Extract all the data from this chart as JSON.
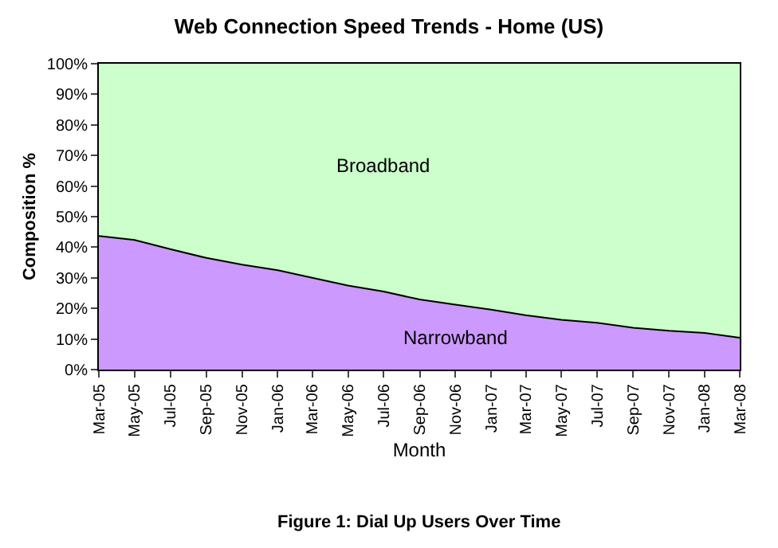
{
  "chart_data": {
    "type": "area",
    "stacked": true,
    "title": "Web Connection Speed Trends - Home (US)",
    "xlabel": "Month",
    "ylabel": "Composition %",
    "annotations": [
      "Figure 1: Dial Up Users Over Time"
    ],
    "x": [
      "2005-03",
      "2005-05",
      "2005-07",
      "2005-09",
      "2005-11",
      "2006-01",
      "2006-03",
      "2006-05",
      "2006-07",
      "2006-09",
      "2006-11",
      "2007-01",
      "2007-03",
      "2007-05",
      "2007-07",
      "2007-09",
      "2007-11",
      "2008-01",
      "2008-03"
    ],
    "series": [
      {
        "name": "Narrowband",
        "color": "#cc99ff",
        "values": [
          43.7,
          42.4,
          39.4,
          36.5,
          34.3,
          32.5,
          30.0,
          27.5,
          25.5,
          22.9,
          21.2,
          19.6,
          17.8,
          16.3,
          15.3,
          13.7,
          12.7,
          12.0,
          10.4
        ]
      },
      {
        "name": "Broadband",
        "color": "#ccffcc",
        "values": [
          56.3,
          57.6,
          60.6,
          63.5,
          65.7,
          67.5,
          70.0,
          72.5,
          74.5,
          77.1,
          78.8,
          80.4,
          82.2,
          83.7,
          84.7,
          86.3,
          87.3,
          88.0,
          89.6
        ]
      }
    ],
    "xlim": [
      "2005-03",
      "2008-03"
    ],
    "xticks": [
      {
        "value": "2005-03",
        "label": "Mar-05"
      },
      {
        "value": "2005-05",
        "label": "May-05"
      },
      {
        "value": "2005-07",
        "label": "Jul-05"
      },
      {
        "value": "2005-09",
        "label": "Sep-05"
      },
      {
        "value": "2005-11",
        "label": "Nov-05"
      },
      {
        "value": "2006-01",
        "label": "Jan-06"
      },
      {
        "value": "2006-03",
        "label": "Mar-06"
      },
      {
        "value": "2006-05",
        "label": "May-06"
      },
      {
        "value": "2006-07",
        "label": "Jul-06"
      },
      {
        "value": "2006-09",
        "label": "Sep-06"
      },
      {
        "value": "2006-11",
        "label": "Nov-06"
      },
      {
        "value": "2007-01",
        "label": "Jan-07"
      },
      {
        "value": "2007-03",
        "label": "Mar-07"
      },
      {
        "value": "2007-05",
        "label": "May-07"
      },
      {
        "value": "2007-07",
        "label": "Jul-07"
      },
      {
        "value": "2007-09",
        "label": "Sep-07"
      },
      {
        "value": "2007-11",
        "label": "Nov-07"
      },
      {
        "value": "2008-01",
        "label": "Jan-08"
      },
      {
        "value": "2008-03",
        "label": "Mar-08"
      }
    ],
    "ylim": [
      0,
      100
    ],
    "yticks": [
      {
        "value": 0,
        "label": "0%"
      },
      {
        "value": 10,
        "label": "10%"
      },
      {
        "value": 20,
        "label": "20%"
      },
      {
        "value": 30,
        "label": "30%"
      },
      {
        "value": 40,
        "label": "40%"
      },
      {
        "value": 50,
        "label": "50%"
      },
      {
        "value": 60,
        "label": "60%"
      },
      {
        "value": 70,
        "label": "70%"
      },
      {
        "value": 80,
        "label": "80%"
      },
      {
        "value": 90,
        "label": "90%"
      },
      {
        "value": 100,
        "label": "100%"
      }
    ],
    "legend": false
  }
}
